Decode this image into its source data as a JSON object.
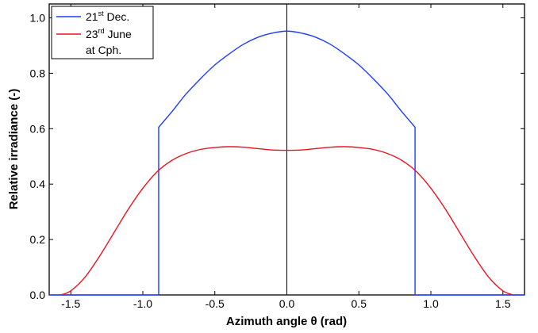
{
  "chart_data": {
    "type": "line",
    "title": "",
    "xlabel": "Azimuth angle θ  (rad)",
    "ylabel": "Relative irradiance (-)",
    "xlim": [
      -1.65,
      1.65
    ],
    "ylim": [
      0.0,
      1.05
    ],
    "xticks": [
      -1.5,
      -1.0,
      -0.5,
      0.0,
      0.5,
      1.0,
      1.5
    ],
    "xtick_labels": [
      "-1.5",
      "-1.0",
      "-0.5",
      "0.0",
      "0.5",
      "1.0",
      "1.5"
    ],
    "yticks": [
      0.0,
      0.2,
      0.4,
      0.6,
      0.8,
      1.0
    ],
    "ytick_labels": [
      "0.0",
      "0.2",
      "0.4",
      "0.6",
      "0.8",
      "1.0"
    ],
    "grid": false,
    "vertical_reference_line_x": 0.0,
    "legend": {
      "placement": "top-left",
      "entries": [
        {
          "base": "21",
          "sup": "st",
          "rest": " Dec.",
          "color": "#1f3cff"
        },
        {
          "base": "23",
          "sup": "rd",
          "rest": " June",
          "color": "#e8141e"
        }
      ],
      "note": "at Cph."
    },
    "series": [
      {
        "name": "21st Dec.",
        "color": "#1f3cff",
        "x": [
          -1.65,
          -0.89,
          -0.89,
          -0.8,
          -0.7,
          -0.6,
          -0.5,
          -0.4,
          -0.3,
          -0.2,
          -0.1,
          0.0,
          0.1,
          0.2,
          0.3,
          0.4,
          0.5,
          0.6,
          0.7,
          0.8,
          0.89,
          0.89,
          1.65
        ],
        "y": [
          0.0,
          0.0,
          0.605,
          0.66,
          0.725,
          0.78,
          0.83,
          0.87,
          0.905,
          0.93,
          0.945,
          0.952,
          0.945,
          0.93,
          0.905,
          0.87,
          0.83,
          0.78,
          0.725,
          0.66,
          0.605,
          0.0,
          0.0
        ]
      },
      {
        "name": "23rd June",
        "color": "#e8141e",
        "x": [
          -1.57,
          -1.5,
          -1.4,
          -1.3,
          -1.2,
          -1.1,
          -1.0,
          -0.9,
          -0.8,
          -0.7,
          -0.6,
          -0.5,
          -0.4,
          -0.3,
          -0.2,
          -0.1,
          0.0,
          0.1,
          0.2,
          0.3,
          0.4,
          0.5,
          0.6,
          0.7,
          0.8,
          0.9,
          1.0,
          1.1,
          1.2,
          1.3,
          1.4,
          1.5,
          1.57
        ],
        "y": [
          0.0,
          0.015,
          0.065,
          0.14,
          0.225,
          0.31,
          0.385,
          0.445,
          0.485,
          0.51,
          0.525,
          0.532,
          0.535,
          0.533,
          0.528,
          0.523,
          0.522,
          0.523,
          0.528,
          0.533,
          0.535,
          0.532,
          0.525,
          0.51,
          0.485,
          0.445,
          0.385,
          0.31,
          0.225,
          0.14,
          0.065,
          0.015,
          0.0
        ]
      }
    ]
  }
}
